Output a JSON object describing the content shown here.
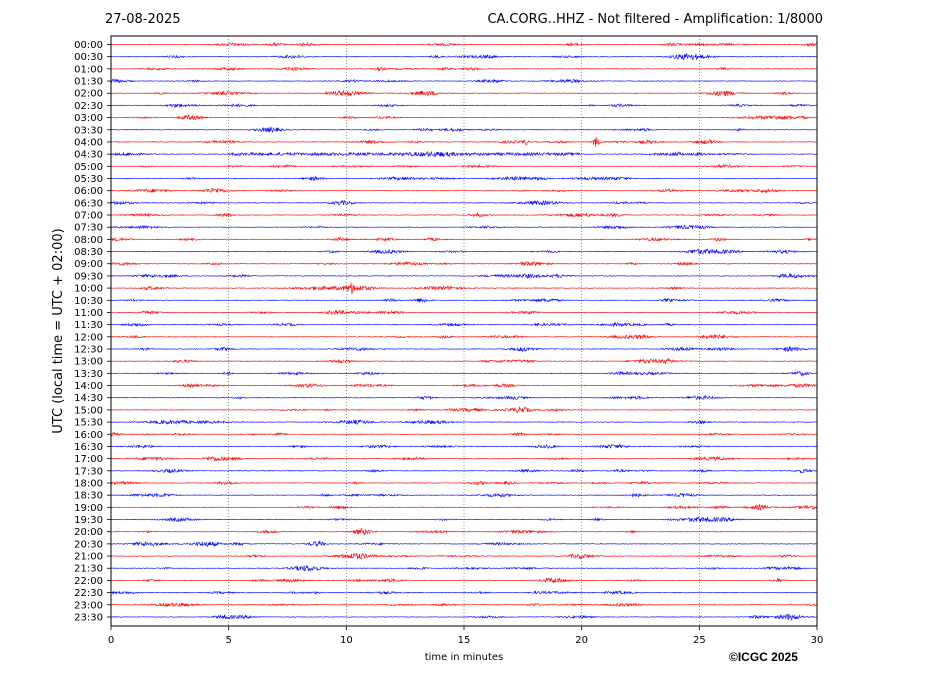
{
  "header": {
    "date": "27-08-2025",
    "title": "CA.CORG..HHZ - Not filtered - Amplification: 1/8000"
  },
  "credit": "©ICGC 2025",
  "chart_data": {
    "type": "line",
    "title": "CA.CORG..HHZ - Not filtered - Amplification: 1/8000",
    "xlabel": "time in minutes",
    "ylabel": "UTC (local time = UTC + 02:00)",
    "xlim": [
      0,
      30
    ],
    "xticks": [
      0,
      5,
      10,
      15,
      20,
      25,
      30
    ],
    "grid": "vertical dotted lines at 5-minute intervals",
    "row_labels": [
      "00:00",
      "00:30",
      "01:00",
      "01:30",
      "02:00",
      "02:30",
      "03:00",
      "03:30",
      "04:00",
      "04:30",
      "05:00",
      "05:30",
      "06:00",
      "06:30",
      "07:00",
      "07:30",
      "08:00",
      "08:30",
      "09:00",
      "09:30",
      "10:00",
      "10:30",
      "11:00",
      "11:30",
      "12:00",
      "12:30",
      "13:00",
      "13:30",
      "14:00",
      "14:30",
      "15:00",
      "15:30",
      "16:00",
      "16:30",
      "17:00",
      "17:30",
      "18:00",
      "18:30",
      "19:00",
      "19:30",
      "20:00",
      "20:30",
      "21:00",
      "21:30",
      "22:00",
      "22:30",
      "23:00",
      "23:30"
    ],
    "colors": [
      "#ff0000",
      "#0000ff"
    ],
    "events": [
      {
        "row": "04:00",
        "minute": 17.6,
        "amplitude": "small"
      },
      {
        "row": "04:00",
        "minute": 20.6,
        "amplitude": "large"
      },
      {
        "row": "10:00",
        "minute": 10.2,
        "amplitude": "medium"
      }
    ],
    "noisy_rows": [
      "04:30"
    ]
  }
}
